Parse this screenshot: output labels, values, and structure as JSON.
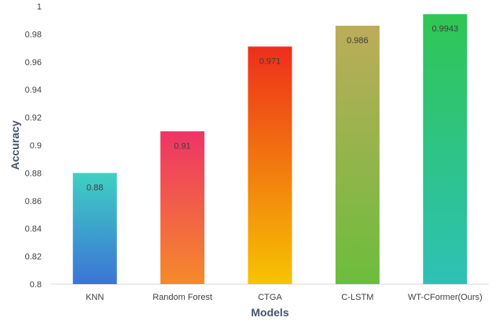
{
  "chart_data": {
    "type": "bar",
    "title": "",
    "xlabel": "Models",
    "ylabel": "Accuracy",
    "categories": [
      "KNN",
      "Random Forest",
      "CTGA",
      "C-LSTM",
      "WT-CFormer(Ours)"
    ],
    "values": [
      0.88,
      0.91,
      0.971,
      0.986,
      0.9943
    ],
    "data_labels": [
      "0.88",
      "0.91",
      "0.971",
      "0.986",
      "0.9943"
    ],
    "ylim": [
      0.8,
      1.0
    ],
    "yticks": [
      0.8,
      0.82,
      0.84,
      0.86,
      0.88,
      0.9,
      0.92,
      0.94,
      0.96,
      0.98,
      1.0
    ],
    "ytick_labels": [
      "0.8",
      "0.82",
      "0.84",
      "0.86",
      "0.88",
      "0.9",
      "0.92",
      "0.94",
      "0.96",
      "0.98",
      "1"
    ],
    "grid": false,
    "legend": "none",
    "bar_gradients": [
      [
        "#3fd0c3",
        "#3b74d6"
      ],
      [
        "#ee3466",
        "#f58a2a"
      ],
      [
        "#ee2e1c",
        "#f6c402"
      ],
      [
        "#bcac5a",
        "#6cbd3c"
      ],
      [
        "#2fc654",
        "#2ec1b6"
      ]
    ]
  }
}
